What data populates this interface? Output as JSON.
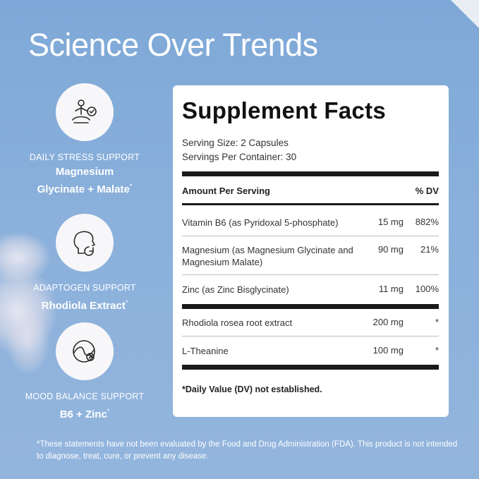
{
  "headline": "Science Over Trends",
  "benefits": [
    {
      "caption": "DAILY STRESS SUPPORT",
      "name": "Magnesium Glycinate + Malate",
      "mark": "*",
      "icon": "meditation-check-icon"
    },
    {
      "caption": "ADAPTOGEN SUPPORT",
      "name": "Rhodiola Extract",
      "mark": "*",
      "icon": "head-cycle-icon"
    },
    {
      "caption": "MOOD BALANCE SUPPORT",
      "name": "B6 + Zinc",
      "mark": "*",
      "icon": "mood-wave-icon"
    }
  ],
  "facts": {
    "title": "Supplement Facts",
    "serving_size": "Serving Size: 2 Capsules",
    "servings_per_container": "Servings Per Container: 30",
    "header_amount": "Amount Per Serving",
    "header_dv": "% DV",
    "rows": [
      {
        "name": "Vitamin B6 (as Pyridoxal 5-phosphate)",
        "amount": "15 mg",
        "dv": "882%"
      },
      {
        "name": "Magnesium (as Magnesium Glycinate and Magnesium Malate)",
        "amount": "90 mg",
        "dv": "21%"
      },
      {
        "name": "Zinc (as Zinc Bisglycinate)",
        "amount": "11 mg",
        "dv": "100%"
      },
      {
        "name": "Rhodiola rosea root extract",
        "amount": "200 mg",
        "dv": "*"
      },
      {
        "name": "L-Theanine",
        "amount": "100 mg",
        "dv": "*"
      }
    ],
    "footnote": "*Daily Value (DV) not established."
  },
  "disclaimer": "*These statements have not been evaluated by the Food and Drug Administration (FDA). This product is not intended to diagnose, treat, cure, or prevent any disease.",
  "colors": {
    "background": "#86add9",
    "panel": "#ffffff",
    "text_light": "#ffffff",
    "text_dark": "#111111"
  }
}
